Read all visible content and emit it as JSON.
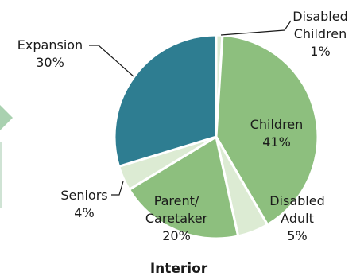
{
  "chart_data": {
    "type": "pie",
    "title": "Interior",
    "slices": [
      {
        "label_lines": [
          "Disabled",
          "Children"
        ],
        "value": 1,
        "value_text": "1%",
        "color": "#dcebd3"
      },
      {
        "label_lines": [
          "Children"
        ],
        "value": 41,
        "value_text": "41%",
        "color": "#8dbf7e"
      },
      {
        "label_lines": [
          "Disabled",
          "Adult"
        ],
        "value": 5,
        "value_text": "5%",
        "color": "#dcebd3"
      },
      {
        "label_lines": [
          "Parent/",
          "Caretaker"
        ],
        "value": 20,
        "value_text": "20%",
        "color": "#8dbf7e"
      },
      {
        "label_lines": [
          "Seniors"
        ],
        "value": 4,
        "value_text": "4%",
        "color": "#dcebd3"
      },
      {
        "label_lines": [
          "Expansion"
        ],
        "value": 30,
        "value_text": "30%",
        "color": "#2e7d91"
      }
    ],
    "left_edge_color": "#a9d1b0"
  }
}
